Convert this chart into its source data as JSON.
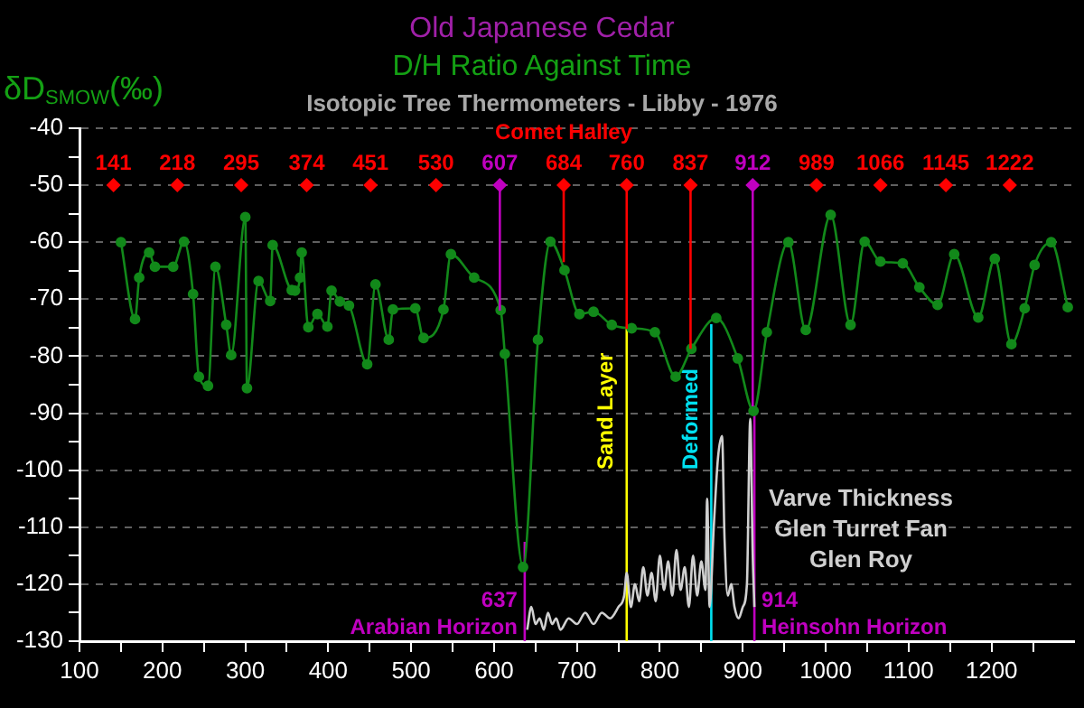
{
  "chart_data": {
    "type": "line",
    "title": "Old Japanese Cedar",
    "subtitle": "D/H Ratio Against Time",
    "ylabel": "δD$_{SMOW}$(‰)",
    "annotations": [
      "Isotopic Tree Thermometers - Libby - 1976",
      {
        "text": "141",
        "x": 141,
        "y": -50
      },
      {
        "text": "218",
        "x": 218,
        "y": -50
      },
      {
        "text": "295",
        "x": 295,
        "y": -50
      },
      {
        "text": "374",
        "x": 374,
        "y": -50
      },
      {
        "text": "451",
        "x": 451,
        "y": -50
      },
      {
        "text": "530",
        "x": 530,
        "y": -50
      },
      {
        "text": "607",
        "x": 607,
        "y": -50
      },
      {
        "text": "684",
        "x": 684,
        "y": -50
      },
      {
        "text": "760",
        "x": 760,
        "y": -50
      },
      {
        "text": "837",
        "x": 837,
        "y": -50
      },
      {
        "text": "912",
        "x": 912,
        "y": -50
      },
      {
        "text": "989",
        "x": 989,
        "y": -50
      },
      {
        "text": "1066",
        "x": 1066,
        "y": -50
      },
      {
        "text": "1145",
        "x": 1145,
        "y": -50
      },
      {
        "text": "1222",
        "x": 1222,
        "y": -50
      }
    ],
    "xlim": [
      100,
      1300
    ],
    "ylim": [
      -130,
      -40
    ],
    "xticks": [
      100,
      {
        "value": 150,
        "label": null
      },
      200,
      {
        "value": 250,
        "label": null
      },
      300,
      {
        "value": 350,
        "label": null
      },
      400,
      {
        "value": 450,
        "label": null
      },
      500,
      {
        "value": 550,
        "label": null
      },
      600,
      {
        "value": 650,
        "label": null
      },
      700,
      {
        "value": 750,
        "label": null
      },
      800,
      {
        "value": 850,
        "label": null
      },
      900,
      {
        "value": 950,
        "label": null
      },
      1000,
      {
        "value": 1050,
        "label": null
      },
      1100,
      {
        "value": 1150,
        "label": null
      },
      1200,
      {
        "value": 1250,
        "label": null
      }
    ],
    "yticks": [
      -130,
      {
        "value": -125,
        "label": null
      },
      -120,
      {
        "value": -115,
        "label": null
      },
      -110,
      {
        "value": -105,
        "label": null
      },
      -100,
      {
        "value": -95,
        "label": null
      },
      -90,
      {
        "value": -85,
        "label": null
      },
      -80,
      {
        "value": -75,
        "label": null
      },
      -70,
      {
        "value": -65,
        "label": null
      },
      -60,
      {
        "value": -55,
        "label": null
      },
      -50,
      {
        "value": -45,
        "label": null
      },
      -40
    ],
    "grid": "y",
    "legend": false,
    "marker": "circle",
    "series": [
      {
        "color": "#12891a",
        "x": [
          150,
          167,
          172,
          184,
          191,
          213,
          226,
          237,
          244,
          255,
          264,
          277,
          283,
          300,
          302,
          316,
          330,
          333,
          356,
          360,
          366,
          368,
          376,
          387,
          399,
          404,
          414,
          425,
          447,
          457,
          473,
          478,
          505,
          515,
          539,
          548,
          576,
          608,
          613,
          635,
          653,
          668,
          685,
          703,
          720,
          742,
          766,
          794,
          819,
          838,
          868,
          894,
          913,
          929,
          955,
          976,
          1006,
          1030,
          1047,
          1066,
          1093,
          1113,
          1135,
          1155,
          1184,
          1204,
          1224,
          1240,
          1252,
          1272,
          1292
        ],
        "values": [
          -60,
          -73.5,
          -66.2,
          -61.8,
          -64.3,
          -64.3,
          -59.9,
          -69.1,
          -83.6,
          -85.2,
          -64.3,
          -74.5,
          -79.8,
          -55.6,
          -85.6,
          -66.8,
          -70.3,
          -60.5,
          -68.4,
          -68.5,
          -66.2,
          -61.8,
          -74.9,
          -72.6,
          -74.8,
          -68.5,
          -70.4,
          -71.1,
          -81.4,
          -67.4,
          -77.1,
          -71.8,
          -71.6,
          -76.8,
          -71.8,
          -62.1,
          -66.2,
          -71.9,
          -79.6,
          -117,
          -77.1,
          -59.9,
          -64.9,
          -72.6,
          -72.2,
          -74.5,
          -75.1,
          -75.8,
          -83.6,
          -78.7,
          -73.3,
          -80.4,
          -89.6,
          -75.8,
          -60,
          -75.4,
          -55.2,
          -74.5,
          -59.9,
          -63.4,
          -63.7,
          -67.9,
          -71,
          -62.1,
          -73.2,
          -62.9,
          -77.9,
          -71.6,
          -64,
          -60,
          -71.4
        ]
      },
      {
        "type": "line",
        "name": "Varve Thickness\nGlen Turret Fan\nGlen Roy",
        "color": "#d0d0d0",
        "marker": "none",
        "x": [
          640,
          645,
          650,
          655,
          660,
          665,
          670,
          675,
          680,
          690,
          700,
          710,
          720,
          730,
          740,
          750,
          757,
          760,
          765,
          770,
          775,
          780,
          785,
          790,
          795,
          800,
          805,
          810,
          815,
          820,
          825,
          830,
          835,
          840,
          845,
          850,
          855,
          857,
          860,
          865,
          870,
          875,
          878,
          882,
          886,
          890,
          895,
          900,
          905,
          909,
          912,
          914
        ],
        "values": [
          -128,
          -124,
          -127,
          -126,
          -128,
          -125,
          -127,
          -126,
          -128,
          -126,
          -127,
          -125,
          -127,
          -125,
          -126,
          -124,
          -122,
          -118,
          -124,
          -120,
          -123,
          -117,
          -122,
          -118,
          -123,
          -115,
          -121,
          -116,
          -122,
          -114,
          -121,
          -117,
          -124,
          -115,
          -122,
          -116,
          -121,
          -105,
          -124,
          -110,
          -98,
          -94,
          -112,
          -122,
          -120,
          -124,
          -126,
          -124,
          -120,
          -91,
          -115,
          -124
        ]
      },
      {
        "type": "scatter",
        "name": "Comet Halley",
        "color": "#ff0000",
        "marker": "diamond",
        "x": [
          141,
          218,
          295,
          374,
          451,
          530,
          607,
          684,
          760,
          837,
          912,
          989,
          1066,
          1145,
          1222
        ],
        "values": [
          -50,
          -50,
          -50,
          -50,
          -50,
          -50,
          -50,
          -50,
          -50,
          -50,
          -50,
          -50,
          -50,
          -50,
          -50
        ],
        "colors": [
          "#ff0000",
          "#ff0000",
          "#ff0000",
          "#ff0000",
          "#ff0000",
          "#ff0000",
          "#c000c0",
          "#ff0000",
          "#ff0000",
          "#ff0000",
          "#c000c0",
          "#ff0000",
          "#ff0000",
          "#ff0000",
          "#ff0000"
        ],
        "errors": [
          null,
          null,
          null,
          null,
          null,
          null,
          [
            -72,
            -50
          ],
          [
            -63.5,
            -50
          ],
          [
            -75.2,
            -50
          ],
          [
            -78.7,
            -50
          ],
          [
            -88.8,
            -50
          ],
          null,
          null,
          null,
          null
        ]
      }
    ],
    "ref_lines": [
      {
        "axis": "x",
        "value": 637,
        "label": "637\nArabian Horizon",
        "color": "#c000c0"
      },
      {
        "axis": "x",
        "value": 760,
        "label": "Sand Layer",
        "color": "#ffff00"
      },
      {
        "axis": "x",
        "value": 862,
        "label": "Deformed",
        "color": "#00e0f0"
      },
      {
        "axis": "x",
        "value": 914,
        "label": "914\nHeinsohn Horizon",
        "color": "#c000c0"
      }
    ]
  }
}
